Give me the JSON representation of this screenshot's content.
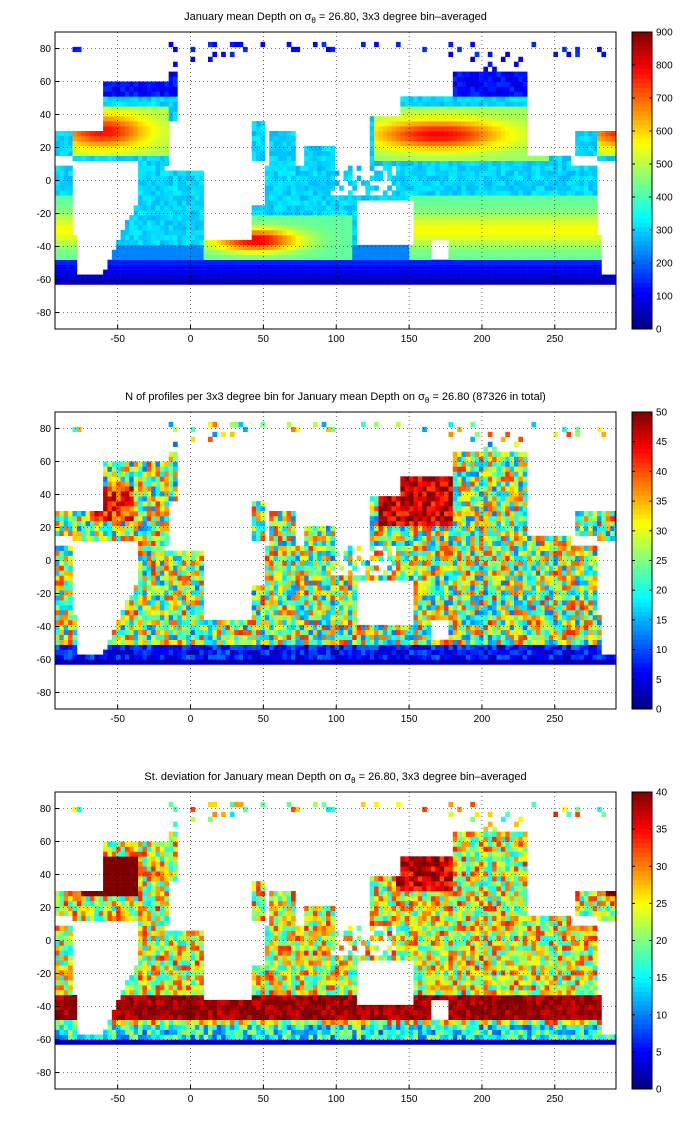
{
  "colormap": "jet",
  "chart_data": [
    {
      "type": "heatmap",
      "title": "January mean Depth on σθ = 26.80, 3x3 degree bin–averaged",
      "title_parts": [
        "January mean Depth on σ",
        "θ",
        " = 26.80, 3x3 degree bin–averaged"
      ],
      "xlabel": "",
      "ylabel": "",
      "xlim": [
        -93,
        292
      ],
      "ylim": [
        -90,
        90
      ],
      "xticks": [
        "-50",
        "0",
        "50",
        "100",
        "150",
        "200",
        "250"
      ],
      "yticks": [
        "80",
        "60",
        "40",
        "20",
        "0",
        "-20",
        "-40",
        "-60",
        "-80"
      ],
      "colorbar": {
        "min": 0,
        "max": 900,
        "ticks": [
          "900",
          "800",
          "700",
          "600",
          "500",
          "400",
          "300",
          "200",
          "100",
          "0"
        ]
      },
      "grid": true,
      "field": "depth"
    },
    {
      "type": "heatmap",
      "title": "N of profiles per 3x3 degree bin for January mean Depth on σθ = 26.80 (87326 in total)",
      "title_parts": [
        "N of profiles per 3x3 degree bin for January mean Depth on σ",
        "θ",
        " = 26.80 (87326 in total)"
      ],
      "xlabel": "",
      "ylabel": "",
      "xlim": [
        -93,
        292
      ],
      "ylim": [
        -90,
        90
      ],
      "xticks": [
        "-50",
        "0",
        "50",
        "100",
        "150",
        "200",
        "250"
      ],
      "yticks": [
        "80",
        "60",
        "40",
        "20",
        "0",
        "-20",
        "-40",
        "-60",
        "-80"
      ],
      "colorbar": {
        "min": 0,
        "max": 50,
        "ticks": [
          "50",
          "45",
          "40",
          "35",
          "30",
          "25",
          "20",
          "15",
          "10",
          "5",
          "0"
        ]
      },
      "grid": true,
      "field": "count"
    },
    {
      "type": "heatmap",
      "title": "St. deviation for January mean Depth on σθ = 26.80, 3x3 degree bin–averaged",
      "title_parts": [
        "St. deviation for January mean Depth on σ",
        "θ",
        " = 26.80, 3x3 degree bin–averaged"
      ],
      "xlabel": "",
      "ylabel": "",
      "xlim": [
        -93,
        292
      ],
      "ylim": [
        -90,
        90
      ],
      "xticks": [
        "-50",
        "0",
        "50",
        "100",
        "150",
        "200",
        "250"
      ],
      "yticks": [
        "80",
        "60",
        "40",
        "20",
        "0",
        "-20",
        "-40",
        "-60",
        "-80"
      ],
      "colorbar": {
        "min": 0,
        "max": 40,
        "ticks": [
          "40",
          "35",
          "30",
          "25",
          "20",
          "15",
          "10",
          "5",
          "0"
        ]
      },
      "grid": true,
      "field": "std"
    }
  ]
}
